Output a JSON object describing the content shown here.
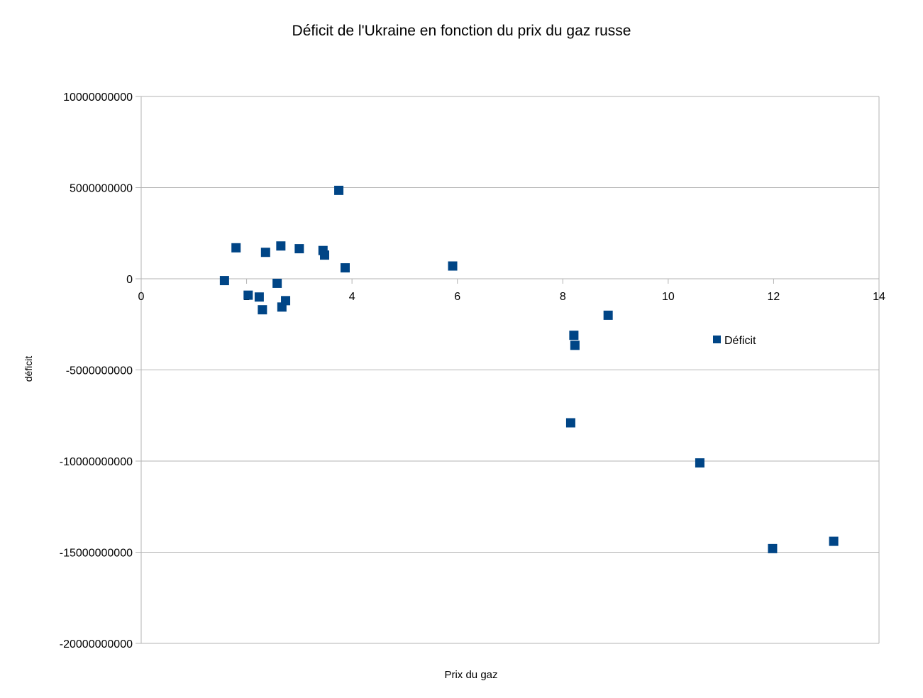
{
  "chart_data": {
    "type": "scatter",
    "title": "Déficit de l'Ukraine en fonction du prix du gaz russe",
    "xlabel": "Prix du gaz",
    "ylabel": "déficit",
    "xlim": [
      0,
      14
    ],
    "ylim": [
      -20000000000,
      10000000000
    ],
    "x_ticks": [
      0,
      2,
      4,
      6,
      8,
      10,
      12,
      14
    ],
    "y_ticks": [
      10000000000,
      5000000000,
      0,
      -5000000000,
      -10000000000,
      -15000000000,
      -20000000000
    ],
    "x_tick_labels": [
      "0",
      "2",
      "4",
      "6",
      "8",
      "10",
      "12",
      "14"
    ],
    "y_tick_labels": [
      "10000000000",
      "5000000000",
      "0",
      "-5000000000",
      "-10000000000",
      "-15000000000",
      "-20000000000"
    ],
    "grid": "horizontal",
    "legend_position": "right",
    "series": [
      {
        "name": "Déficit",
        "color": "#004586",
        "marker": "square",
        "points": [
          {
            "x": 1.58,
            "y": -100000000
          },
          {
            "x": 1.8,
            "y": 1700000000
          },
          {
            "x": 2.03,
            "y": -900000000
          },
          {
            "x": 2.24,
            "y": -1000000000
          },
          {
            "x": 2.3,
            "y": -1700000000
          },
          {
            "x": 2.36,
            "y": 1450000000
          },
          {
            "x": 2.58,
            "y": -250000000
          },
          {
            "x": 2.65,
            "y": 1800000000
          },
          {
            "x": 2.67,
            "y": -1550000000
          },
          {
            "x": 2.74,
            "y": -1200000000
          },
          {
            "x": 3.0,
            "y": 1650000000
          },
          {
            "x": 3.45,
            "y": 1550000000
          },
          {
            "x": 3.48,
            "y": 1300000000
          },
          {
            "x": 3.75,
            "y": 4850000000
          },
          {
            "x": 3.87,
            "y": 600000000
          },
          {
            "x": 5.91,
            "y": 700000000
          },
          {
            "x": 8.15,
            "y": -7900000000
          },
          {
            "x": 8.21,
            "y": -3100000000
          },
          {
            "x": 8.23,
            "y": -3650000000
          },
          {
            "x": 8.86,
            "y": -2000000000
          },
          {
            "x": 10.6,
            "y": -10100000000
          },
          {
            "x": 11.98,
            "y": -14800000000
          },
          {
            "x": 13.14,
            "y": -14400000000
          }
        ]
      }
    ]
  }
}
